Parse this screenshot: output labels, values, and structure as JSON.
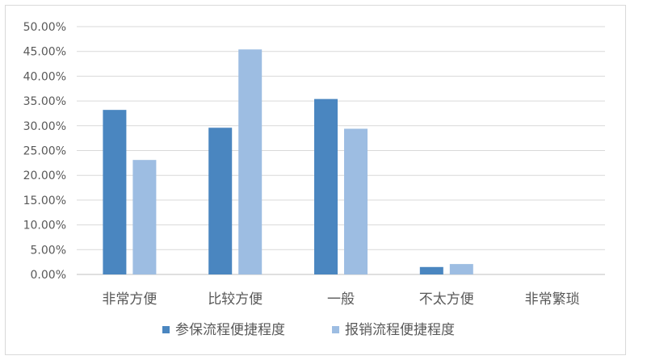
{
  "chart_data": {
    "type": "bar",
    "categories": [
      "非常方便",
      "比较方便",
      "一般",
      "不太方便",
      "非常繁琐"
    ],
    "series": [
      {
        "name": "参保流程便捷程度",
        "values": [
          33.2,
          29.6,
          35.4,
          1.5,
          0.0
        ]
      },
      {
        "name": "报销流程便捷程度",
        "values": [
          23.1,
          45.4,
          29.4,
          2.1,
          0.0
        ]
      }
    ],
    "y_ticks": [
      "0.00%",
      "5.00%",
      "10.00%",
      "15.00%",
      "20.00%",
      "25.00%",
      "30.00%",
      "35.00%",
      "40.00%",
      "45.00%",
      "50.00%"
    ],
    "ylim": [
      0,
      50
    ],
    "grid": true,
    "legend_position": "bottom",
    "colors": [
      "#4a86c0",
      "#9dbde2"
    ]
  }
}
